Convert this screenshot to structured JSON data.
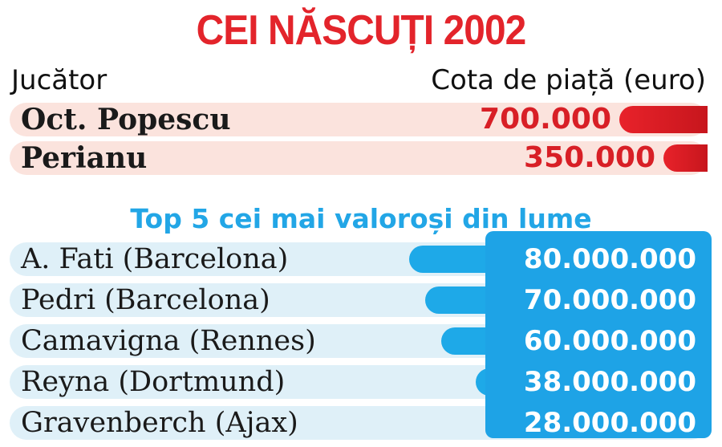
{
  "chart_data": [
    {
      "type": "bar",
      "title": "CEI NĂSCUȚI 2002",
      "xlabel": "Jucător",
      "ylabel": "Cota de piață (euro)",
      "categories": [
        "Oct. Popescu",
        "Perianu"
      ],
      "values": [
        700000,
        350000
      ],
      "value_labels": [
        "700.000",
        "350.000"
      ],
      "color": "#e3242b",
      "ylim": [
        0,
        700000
      ]
    },
    {
      "type": "bar",
      "title": "Top 5 cei mai valoroși din lume",
      "categories": [
        "A. Fati (Barcelona)",
        "Pedri (Barcelona)",
        "Camavigna (Rennes)",
        "Reyna (Dortmund)",
        "Gravenberch (Ajax)"
      ],
      "values": [
        80000000,
        70000000,
        60000000,
        38000000,
        28000000
      ],
      "value_labels": [
        "80.000.000",
        "70.000.000",
        "60.000.000",
        "38.000.000",
        "28.000.000"
      ],
      "color": "#1ea9e8",
      "ylim": [
        0,
        80000000
      ]
    }
  ]
}
